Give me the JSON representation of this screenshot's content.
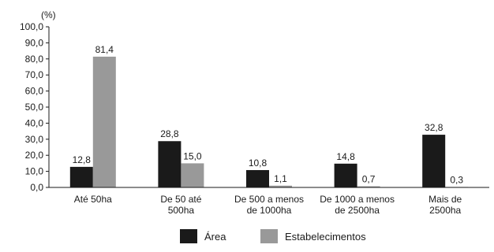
{
  "chart_data": {
    "type": "bar",
    "unit_label": "(%)",
    "ylim": [
      0,
      100
    ],
    "y_ticks": [
      "0,0",
      "10,0",
      "20,0",
      "30,0",
      "40,0",
      "50,0",
      "60,0",
      "70,0",
      "80,0",
      "90,0",
      "100,0"
    ],
    "grid": false,
    "legend_position": "bottom",
    "categories": [
      [
        "Até 50ha"
      ],
      [
        "De 50 até",
        "500ha"
      ],
      [
        "De 500 a menos",
        "de 1000ha"
      ],
      [
        "De 1000 a menos",
        "de 2500ha"
      ],
      [
        "Mais de",
        "2500ha"
      ]
    ],
    "series": [
      {
        "name": "Área",
        "color": "#1a1a1a",
        "values": [
          12.8,
          28.8,
          10.8,
          14.8,
          32.8
        ],
        "labels": [
          "12,8",
          "28,8",
          "10,8",
          "14,8",
          "32,8"
        ]
      },
      {
        "name": "Estabelecimentos",
        "color": "#999999",
        "values": [
          81.4,
          15.0,
          1.1,
          0.7,
          0.3
        ],
        "labels": [
          "81,4",
          "15,0",
          "1,1",
          "0,7",
          "0,3"
        ]
      }
    ]
  }
}
